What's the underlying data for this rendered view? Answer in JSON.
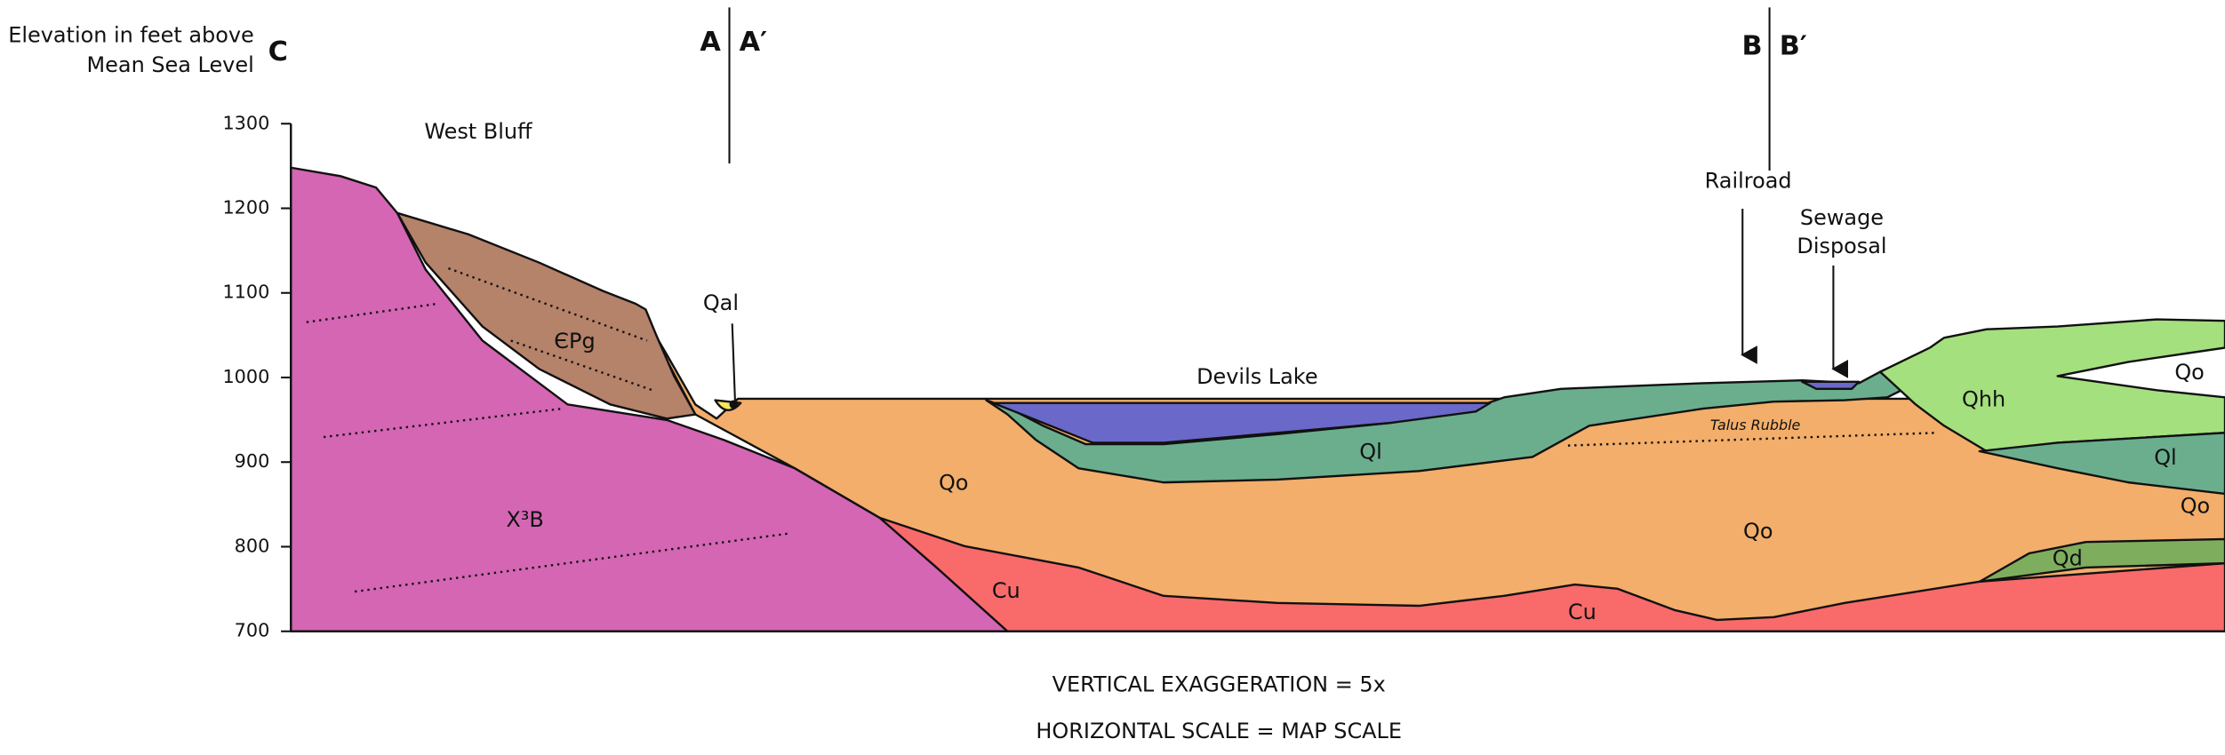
{
  "axis": {
    "label": [
      "Elevation in feet above",
      "Mean Sea Level"
    ],
    "ticks": [
      1300,
      1200,
      1100,
      1000,
      900,
      800,
      700
    ]
  },
  "section_end": "C",
  "sections": [
    {
      "left": "A",
      "right": "A′"
    },
    {
      "left": "B",
      "right": "B′"
    }
  ],
  "landmarks": {
    "west_bluff": "West Bluff",
    "qal": "Qal",
    "lake": "Devils Lake",
    "railroad": "Railroad",
    "sewage": [
      "Sewage",
      "Disposal"
    ]
  },
  "units": [
    "ЄPg",
    "X³B",
    "Qo",
    "Qo",
    "Qo",
    "Qo",
    "Ql",
    "Ql",
    "Cu",
    "Cu",
    "Qhh",
    "Qd",
    "Talus Rubble"
  ],
  "notes": [
    "VERTICAL EXAGGERATION = 5x",
    "HORIZONTAL SCALE = MAP SCALE"
  ]
}
